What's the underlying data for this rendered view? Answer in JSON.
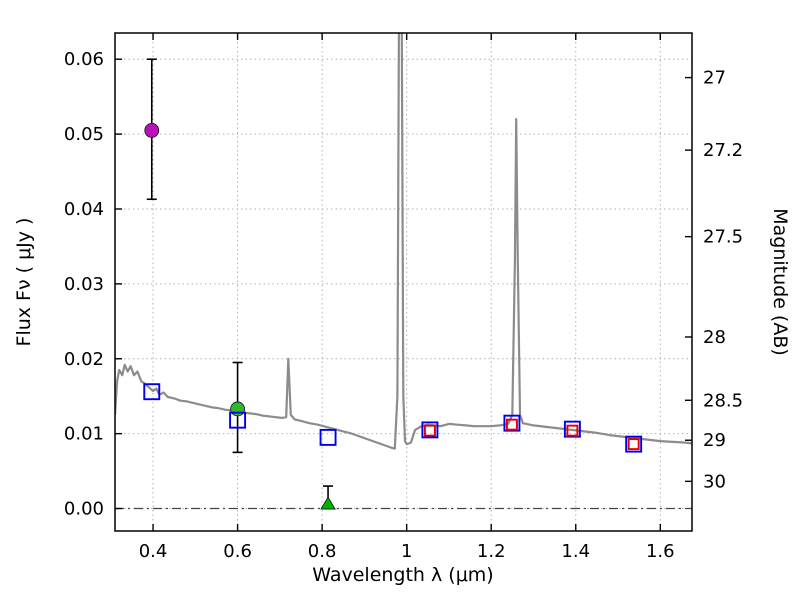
{
  "figure": {
    "background": "#ffffff",
    "frame_color": "#000000",
    "grid_color": "#b0b0b0",
    "zero_line_color": "#444444"
  },
  "chart_data": {
    "type": "line",
    "title": "",
    "xlabel": "Wavelength  λ (μm)",
    "ylabel_left": "Flux  Fν  ( μJy )",
    "ylabel_right": "Magnitude (AB)",
    "xlim": [
      0.31,
      1.675
    ],
    "ylim": [
      -0.003,
      0.0635
    ],
    "ab_zeropoint": 23.9,
    "grid": {
      "show": true,
      "style": "dotted"
    },
    "zero_line": {
      "y": 0.0,
      "style": "dash-dot"
    },
    "x_ticks": [
      {
        "v": 0.4,
        "label": "0.4"
      },
      {
        "v": 0.6,
        "label": "0.6"
      },
      {
        "v": 0.8,
        "label": "0.8"
      },
      {
        "v": 1.0,
        "label": "1"
      },
      {
        "v": 1.2,
        "label": "1.2"
      },
      {
        "v": 1.4,
        "label": "1.4"
      },
      {
        "v": 1.6,
        "label": "1.6"
      }
    ],
    "y_ticks_left": [
      {
        "v": 0.0,
        "label": "0.00"
      },
      {
        "v": 0.01,
        "label": "0.01"
      },
      {
        "v": 0.02,
        "label": "0.02"
      },
      {
        "v": 0.03,
        "label": "0.03"
      },
      {
        "v": 0.04,
        "label": "0.04"
      },
      {
        "v": 0.05,
        "label": "0.05"
      },
      {
        "v": 0.06,
        "label": "0.06"
      }
    ],
    "y_ticks_right": [
      {
        "mag": 27.0,
        "label": "27"
      },
      {
        "mag": 27.2,
        "label": "27.2"
      },
      {
        "mag": 27.5,
        "label": "27.5"
      },
      {
        "mag": 28.0,
        "label": "28"
      },
      {
        "mag": 28.5,
        "label": "28.5"
      },
      {
        "mag": 29.0,
        "label": "29"
      },
      {
        "mag": 30.0,
        "label": "30"
      }
    ],
    "spectrum": {
      "name": "model-spectrum",
      "color": "#8c8c8c",
      "width": 2.2,
      "points": [
        [
          0.31,
          0.0125
        ],
        [
          0.315,
          0.017
        ],
        [
          0.32,
          0.0185
        ],
        [
          0.327,
          0.0178
        ],
        [
          0.333,
          0.0192
        ],
        [
          0.34,
          0.0183
        ],
        [
          0.347,
          0.019
        ],
        [
          0.355,
          0.0178
        ],
        [
          0.363,
          0.0183
        ],
        [
          0.372,
          0.017
        ],
        [
          0.38,
          0.0167
        ],
        [
          0.39,
          0.0162
        ],
        [
          0.4,
          0.0157
        ],
        [
          0.408,
          0.016
        ],
        [
          0.415,
          0.0152
        ],
        [
          0.425,
          0.0155
        ],
        [
          0.435,
          0.0149
        ],
        [
          0.45,
          0.0147
        ],
        [
          0.465,
          0.0144
        ],
        [
          0.48,
          0.0143
        ],
        [
          0.495,
          0.0141
        ],
        [
          0.51,
          0.0139
        ],
        [
          0.525,
          0.0137
        ],
        [
          0.54,
          0.0135
        ],
        [
          0.555,
          0.0134
        ],
        [
          0.57,
          0.0132
        ],
        [
          0.585,
          0.0131
        ],
        [
          0.6,
          0.013
        ],
        [
          0.615,
          0.0128
        ],
        [
          0.63,
          0.0127
        ],
        [
          0.645,
          0.0126
        ],
        [
          0.66,
          0.0124
        ],
        [
          0.675,
          0.0123
        ],
        [
          0.69,
          0.0122
        ],
        [
          0.705,
          0.0121
        ],
        [
          0.715,
          0.0122
        ],
        [
          0.72,
          0.02
        ],
        [
          0.726,
          0.0125
        ],
        [
          0.735,
          0.0119
        ],
        [
          0.75,
          0.0117
        ],
        [
          0.77,
          0.0114
        ],
        [
          0.79,
          0.0112
        ],
        [
          0.81,
          0.0109
        ],
        [
          0.83,
          0.0106
        ],
        [
          0.85,
          0.0103
        ],
        [
          0.87,
          0.01
        ],
        [
          0.89,
          0.0096
        ],
        [
          0.91,
          0.0092
        ],
        [
          0.93,
          0.0088
        ],
        [
          0.95,
          0.0084
        ],
        [
          0.965,
          0.0081
        ],
        [
          0.972,
          0.008
        ],
        [
          0.978,
          0.015
        ],
        [
          0.982,
          0.07
        ],
        [
          0.988,
          0.07
        ],
        [
          0.992,
          0.015
        ],
        [
          0.996,
          0.009
        ],
        [
          1.0,
          0.0086
        ],
        [
          1.01,
          0.0088
        ],
        [
          1.02,
          0.0105
        ],
        [
          1.035,
          0.011
        ],
        [
          1.05,
          0.0112
        ],
        [
          1.065,
          0.0111
        ],
        [
          1.08,
          0.011
        ],
        [
          1.1,
          0.0113
        ],
        [
          1.12,
          0.0112
        ],
        [
          1.14,
          0.0111
        ],
        [
          1.16,
          0.011
        ],
        [
          1.18,
          0.011
        ],
        [
          1.2,
          0.011
        ],
        [
          1.22,
          0.0111
        ],
        [
          1.24,
          0.0113
        ],
        [
          1.25,
          0.0125
        ],
        [
          1.256,
          0.033
        ],
        [
          1.259,
          0.052
        ],
        [
          1.263,
          0.033
        ],
        [
          1.268,
          0.0125
        ],
        [
          1.275,
          0.0114
        ],
        [
          1.3,
          0.0111
        ],
        [
          1.33,
          0.0109
        ],
        [
          1.36,
          0.0107
        ],
        [
          1.39,
          0.0105
        ],
        [
          1.42,
          0.0103
        ],
        [
          1.45,
          0.0101
        ],
        [
          1.48,
          0.0098
        ],
        [
          1.51,
          0.0096
        ],
        [
          1.54,
          0.0094
        ],
        [
          1.57,
          0.0092
        ],
        [
          1.6,
          0.009
        ],
        [
          1.63,
          0.0089
        ],
        [
          1.66,
          0.0088
        ],
        [
          1.675,
          0.0087
        ]
      ]
    },
    "photometry": {
      "model_squares": {
        "name": "model-photometry-squares",
        "marker": "square-open",
        "color": "#0000ee",
        "size": 15,
        "points": [
          [
            0.397,
            0.0156
          ],
          [
            0.6,
            0.0118
          ],
          [
            0.814,
            0.0095
          ],
          [
            1.055,
            0.0105
          ],
          [
            1.249,
            0.0114
          ],
          [
            1.392,
            0.0106
          ],
          [
            1.537,
            0.0086
          ]
        ]
      },
      "observed_squares": {
        "name": "observed-photometry-squares",
        "marker": "square-open",
        "color": "#e00000",
        "size": 10,
        "points": [
          [
            1.055,
            0.0104
          ],
          [
            1.249,
            0.0112
          ],
          [
            1.392,
            0.0104
          ],
          [
            1.537,
            0.0086
          ]
        ]
      },
      "detections": [
        {
          "name": "detection-magenta",
          "marker": "circle",
          "color": "#bb11bb",
          "x": 0.397,
          "y": 0.0505,
          "err_lo": 0.0092,
          "err_hi": 0.0095
        },
        {
          "name": "detection-green",
          "marker": "circle",
          "color": "#2eb82e",
          "x": 0.6,
          "y": 0.0133,
          "err_lo": 0.0058,
          "err_hi": 0.0062
        }
      ],
      "upper_limits": [
        {
          "name": "upper-limit-green",
          "marker": "triangle-up",
          "color": "#00b300",
          "x": 0.814,
          "y": 0.0006,
          "err_hi": 0.0024
        }
      ]
    }
  }
}
